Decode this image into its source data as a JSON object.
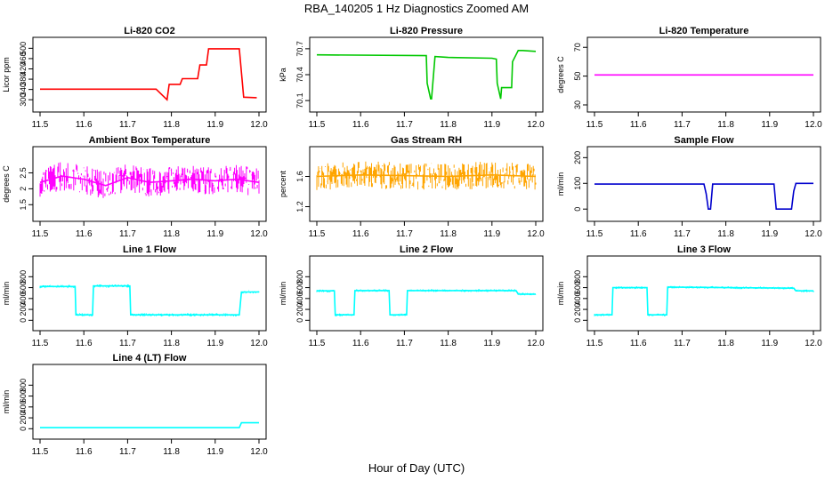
{
  "figure": {
    "title": "RBA_140205  1 Hz Diagnostics Zoomed AM",
    "xlabel": "Hour of Day (UTC)"
  },
  "chart_data": [
    {
      "id": "co2",
      "type": "line",
      "title": "Li-820 CO2",
      "ylabel": "Licor ppm",
      "color": "#ff0000",
      "xlim": [
        11.5,
        12.0
      ],
      "ylim": [
        280,
        515
      ],
      "xticks": [
        "11.5",
        "11.6",
        "11.7",
        "11.8",
        "11.9",
        "12.0"
      ],
      "yticks": [
        300,
        340,
        380,
        420,
        460,
        500
      ],
      "series": [
        {
          "name": "CO2",
          "x": [
            11.5,
            11.76,
            11.765,
            11.79,
            11.795,
            11.82,
            11.825,
            11.86,
            11.865,
            11.88,
            11.885,
            11.94,
            11.955,
            11.965,
            11.995
          ],
          "values": [
            341,
            341,
            341,
            300,
            360,
            360,
            382,
            382,
            435,
            435,
            498,
            498,
            498,
            310,
            308
          ]
        }
      ]
    },
    {
      "id": "pressure",
      "type": "line",
      "title": "Li-820 Pressure",
      "ylabel": "kPa",
      "color": "#00c800",
      "xlim": [
        11.5,
        12.0
      ],
      "ylim": [
        70.05,
        70.75
      ],
      "xticks": [
        "11.5",
        "11.6",
        "11.7",
        "11.8",
        "11.9",
        "12.0"
      ],
      "yticks": [
        70.1,
        70.4,
        70.7
      ],
      "series": [
        {
          "name": "Pressure",
          "x": [
            11.5,
            11.75,
            11.752,
            11.76,
            11.762,
            11.77,
            11.8,
            11.9,
            11.91,
            11.912,
            11.92,
            11.922,
            11.93,
            11.945,
            11.947,
            11.96,
            11.97,
            12.0
          ],
          "values": [
            70.63,
            70.62,
            70.3,
            70.12,
            70.12,
            70.61,
            70.6,
            70.59,
            70.58,
            70.3,
            70.12,
            70.25,
            70.25,
            70.25,
            70.55,
            70.68,
            70.68,
            70.67
          ]
        }
      ]
    },
    {
      "id": "li820_temp",
      "type": "line",
      "title": "Li-820 Temperature",
      "ylabel": "degrees C",
      "color": "#ff00ff",
      "xlim": [
        11.5,
        12.0
      ],
      "ylim": [
        30,
        72
      ],
      "xticks": [
        "11.5",
        "11.6",
        "11.7",
        "11.8",
        "11.9",
        "12.0"
      ],
      "yticks": [
        30,
        50,
        70
      ],
      "series": [
        {
          "name": "Temperature",
          "x": [
            11.5,
            12.0
          ],
          "values": [
            50.8,
            50.8
          ]
        }
      ]
    },
    {
      "id": "box_temp",
      "type": "line",
      "title": "Ambient Box Temperature",
      "ylabel": "degrees C",
      "color": "#ff00ff",
      "xlim": [
        11.5,
        12.0
      ],
      "ylim": [
        1.2,
        3.1
      ],
      "xticks": [
        "11.5",
        "11.6",
        "11.7",
        "11.8",
        "11.9",
        "12.0"
      ],
      "yticks": [
        1.5,
        2.0,
        2.5
      ],
      "series": [
        {
          "name": "Box temperature",
          "x": [
            11.5,
            11.55,
            11.6,
            11.65,
            11.7,
            11.75,
            11.8,
            11.85,
            11.9,
            11.95,
            12.0
          ],
          "values": [
            2.2,
            2.4,
            2.3,
            2.1,
            2.35,
            2.2,
            2.25,
            2.3,
            2.25,
            2.3,
            2.2
          ]
        }
      ]
    },
    {
      "id": "rh",
      "type": "line",
      "title": "Gas Stream RH",
      "ylabel": "percent",
      "color": "#ffa500",
      "xlim": [
        11.5,
        12.0
      ],
      "ylim": [
        1.1,
        1.9
      ],
      "xticks": [
        "11.5",
        "11.6",
        "11.7",
        "11.8",
        "11.9",
        "12.0"
      ],
      "yticks": [
        1.2,
        1.6
      ],
      "series": [
        {
          "name": "RH",
          "x": [
            11.5,
            11.6,
            11.7,
            11.8,
            11.9,
            12.0
          ],
          "values": [
            1.6,
            1.62,
            1.61,
            1.6,
            1.62,
            1.6
          ]
        }
      ]
    },
    {
      "id": "sample_flow",
      "type": "line",
      "title": "Sample Flow",
      "ylabel": "ml/min",
      "color": "#0000cd",
      "xlim": [
        11.5,
        12.0
      ],
      "ylim": [
        -20,
        215
      ],
      "xticks": [
        "11.5",
        "11.6",
        "11.7",
        "11.8",
        "11.9",
        "12.0"
      ],
      "yticks": [
        0,
        100,
        200
      ],
      "series": [
        {
          "name": "Sample flow",
          "x": [
            11.5,
            11.75,
            11.755,
            11.76,
            11.765,
            11.77,
            11.9,
            11.91,
            11.915,
            11.95,
            11.955,
            11.96,
            12.0
          ],
          "values": [
            97,
            97,
            60,
            0,
            0,
            97,
            97,
            97,
            0,
            0,
            70,
            100,
            100
          ]
        }
      ]
    },
    {
      "id": "line1",
      "type": "line",
      "title": "Line 1 Flow",
      "ylabel": "ml/min",
      "color": "#00ffff",
      "xlim": [
        11.5,
        12.0
      ],
      "ylim": [
        -60,
        1050
      ],
      "xticks": [
        "11.5",
        "11.6",
        "11.7",
        "11.8",
        "11.9",
        "12.0"
      ],
      "yticks": [
        0,
        200,
        400,
        600,
        800
      ],
      "series": [
        {
          "name": "Line 1",
          "x": [
            11.5,
            11.58,
            11.582,
            11.62,
            11.622,
            11.705,
            11.707,
            11.955,
            11.96,
            12.0
          ],
          "values": [
            620,
            620,
            100,
            100,
            630,
            630,
            100,
            100,
            520,
            520
          ]
        }
      ]
    },
    {
      "id": "line2",
      "type": "line",
      "title": "Line 2 Flow",
      "ylabel": "ml/min",
      "color": "#00ffff",
      "xlim": [
        11.5,
        12.0
      ],
      "ylim": [
        -60,
        1050
      ],
      "xticks": [
        "11.5",
        "11.6",
        "11.7",
        "11.8",
        "11.9",
        "12.0"
      ],
      "yticks": [
        0,
        200,
        400,
        600,
        800
      ],
      "series": [
        {
          "name": "Line 2",
          "x": [
            11.5,
            11.54,
            11.542,
            11.585,
            11.587,
            11.665,
            11.667,
            11.705,
            11.707,
            11.955,
            11.96,
            12.0
          ],
          "values": [
            540,
            540,
            100,
            100,
            545,
            545,
            100,
            100,
            545,
            545,
            480,
            480
          ]
        }
      ]
    },
    {
      "id": "line3",
      "type": "line",
      "title": "Line 3 Flow",
      "ylabel": "ml/min",
      "color": "#00ffff",
      "xlim": [
        11.5,
        12.0
      ],
      "ylim": [
        -60,
        1050
      ],
      "xticks": [
        "11.5",
        "11.6",
        "11.7",
        "11.8",
        "11.9",
        "12.0"
      ],
      "yticks": [
        0,
        200,
        400,
        600,
        800
      ],
      "series": [
        {
          "name": "Line 3",
          "x": [
            11.5,
            11.54,
            11.542,
            11.62,
            11.622,
            11.665,
            11.667,
            11.955,
            11.96,
            12.0
          ],
          "values": [
            100,
            100,
            600,
            600,
            100,
            100,
            610,
            590,
            540,
            540
          ]
        }
      ]
    },
    {
      "id": "line4",
      "type": "line",
      "title": "Line 4 (LT) Flow",
      "ylabel": "ml/min",
      "color": "#00ffff",
      "xlim": [
        11.5,
        12.0
      ],
      "ylim": [
        -60,
        1050
      ],
      "xticks": [
        "11.5",
        "11.6",
        "11.7",
        "11.8",
        "11.9",
        "12.0"
      ],
      "yticks": [
        0,
        200,
        400,
        600,
        800
      ],
      "series": [
        {
          "name": "Line 4",
          "x": [
            11.5,
            11.955,
            11.96,
            12.0
          ],
          "values": [
            20,
            20,
            110,
            110
          ]
        }
      ]
    }
  ]
}
